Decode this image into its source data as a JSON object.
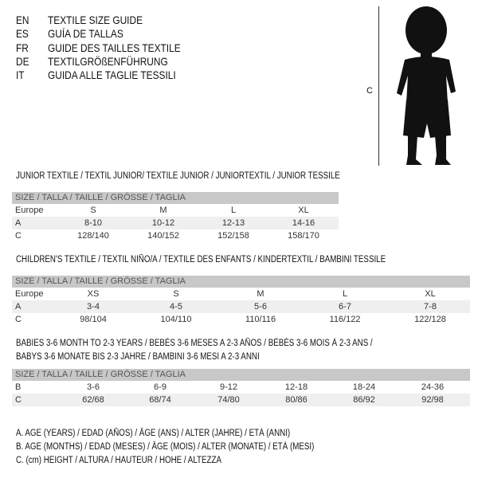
{
  "languages": [
    {
      "code": "EN",
      "text": "TEXTILE SIZE GUIDE"
    },
    {
      "code": "ES",
      "text": "GUÍA DE TALLAS"
    },
    {
      "code": "FR",
      "text": "GUIDE DES TAILLES TEXTILE"
    },
    {
      "code": "DE",
      "text": "TEXTILGRÖßENFÜHRUNG"
    },
    {
      "code": "IT",
      "text": "GUIDA ALLE TAGLIE TESSILI"
    }
  ],
  "figure": {
    "label": "C"
  },
  "size_header": "SIZE / TALLA / TAILLE / GRÖSSE / TAGLIA",
  "junior": {
    "title": "JUNIOR TEXTILE / TEXTIL JUNIOR/ TEXTILE JUNIOR / JUNIORTEXTIL / JUNIOR TESSILE",
    "rows": [
      {
        "label": "Europe",
        "values": [
          "S",
          "M",
          "L",
          "XL"
        ]
      },
      {
        "label": "A",
        "values": [
          "8-10",
          "10-12",
          "12-13",
          "14-16"
        ]
      },
      {
        "label": "C",
        "values": [
          "128/140",
          "140/152",
          "152/158",
          "158/170"
        ]
      }
    ]
  },
  "children": {
    "title": "CHILDREN'S TEXTILE / TEXTIL NIÑO/A / TEXTILE DES ENFANTS / KINDERTEXTIL / BAMBINI TESSILE",
    "rows": [
      {
        "label": "Europe",
        "values": [
          "XS",
          "S",
          "M",
          "L",
          "XL"
        ]
      },
      {
        "label": "A",
        "values": [
          "3-4",
          "4-5",
          "5-6",
          "6-7",
          "7-8"
        ]
      },
      {
        "label": "C",
        "values": [
          "98/104",
          "104/110",
          "110/116",
          "116/122",
          "122/128"
        ]
      }
    ]
  },
  "babies": {
    "title_line1": "BABIES 3-6 MONTH TO 2-3 YEARS / BEBÉS 3-6 MESES A 2-3 AÑOS / BÉBÉS 3-6 MOIS À 2-3 ANS /",
    "title_line2": "BABYS 3-6 MONATE BIS 2-3 JAHRE / BAMBINI 3-6 MESI A 2-3 ANNI",
    "rows": [
      {
        "label": "B",
        "values": [
          "3-6",
          "6-9",
          "9-12",
          "12-18",
          "18-24",
          "24-36"
        ]
      },
      {
        "label": "C",
        "values": [
          "62/68",
          "68/74",
          "74/80",
          "80/86",
          "86/92",
          "92/98"
        ]
      }
    ]
  },
  "legend": [
    "A. AGE (YEARS) / EDAD (AÑOS) / ÂGE (ANS) / ALTER (JAHRE) / ETÀ (ANNI)",
    "B. AGE (MONTHS) / EDAD (MESES) / ÂGE (MOIS) / ALTER (MONATE) / ETÀ (MESI)",
    "C. (cm) HEIGHT / ALTURA / HAUTEUR / HÖHE / ALTEZZA"
  ]
}
